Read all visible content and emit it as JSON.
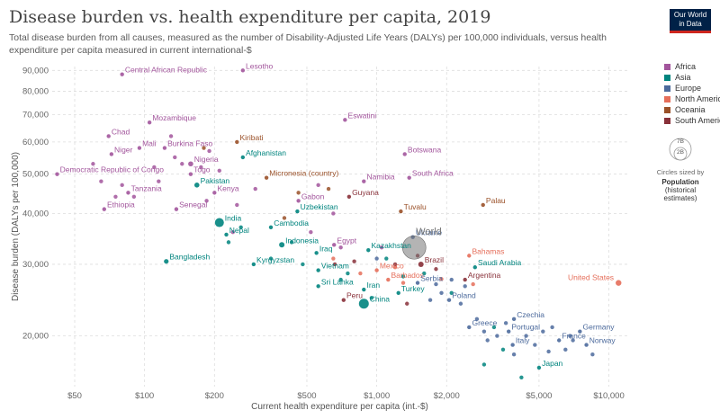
{
  "title": "Disease burden vs. health expenditure per capita, 2019",
  "subtitle": "Total disease burden from all causes, measured as the number of Disability-Adjusted Life Years (DALYs) per 100,000 individuals, versus health expenditure per capita measured in current international-$",
  "logo": {
    "line1": "Our World",
    "line2": "in Data"
  },
  "colors": {
    "Africa": "#a2559c",
    "Asia": "#00847e",
    "Europe": "#4c6a9c",
    "North America": "#e56e5a",
    "Oceania": "#9a5129",
    "South America": "#883039",
    "World": "#777777"
  },
  "legend": [
    "Africa",
    "Asia",
    "Europe",
    "North America",
    "Oceania",
    "South America"
  ],
  "size_legend": {
    "big": "7B",
    "small": "2B",
    "note": "Circles sized by",
    "title": "Population",
    "sub": "(historical estimates)"
  },
  "chart_data": {
    "type": "scatter",
    "xlabel": "Current health expenditure per capita (int.-$)",
    "ylabel": "Disease burden (DALYs per 100,000)",
    "x_scale": "log",
    "y_scale": "log",
    "xlim": [
      40,
      12000
    ],
    "ylim": [
      15000,
      92000
    ],
    "x_ticks": [
      50,
      100,
      200,
      500,
      1000,
      2000,
      5000,
      10000
    ],
    "x_tick_labels": [
      "$50",
      "$100",
      "$200",
      "$500",
      "$1,000",
      "$2,000",
      "$5,000",
      "$10,000"
    ],
    "y_ticks": [
      20000,
      30000,
      40000,
      50000,
      60000,
      70000,
      80000,
      90000
    ],
    "y_tick_labels": [
      "20,000",
      "30,000",
      "40,000",
      "50,000",
      "60,000",
      "70,000",
      "80,000",
      "90,000"
    ],
    "labeled_points": [
      {
        "name": "Central African Republic",
        "region": "Africa",
        "x": 80,
        "y": 88000
      },
      {
        "name": "Lesotho",
        "region": "Africa",
        "x": 265,
        "y": 90000
      },
      {
        "name": "Chad",
        "region": "Africa",
        "x": 70,
        "y": 62000
      },
      {
        "name": "Mozambique",
        "region": "Africa",
        "x": 105,
        "y": 67000
      },
      {
        "name": "Eswatini",
        "region": "Africa",
        "x": 730,
        "y": 68000
      },
      {
        "name": "Niger",
        "region": "Africa",
        "x": 72,
        "y": 56000
      },
      {
        "name": "Mali",
        "region": "Africa",
        "x": 95,
        "y": 58000
      },
      {
        "name": "Burkina Faso",
        "region": "Africa",
        "x": 122,
        "y": 58000
      },
      {
        "name": "Kiribati",
        "region": "Oceania",
        "x": 250,
        "y": 60000
      },
      {
        "name": "Afghanistan",
        "region": "Asia",
        "x": 265,
        "y": 55000
      },
      {
        "name": "Botswana",
        "region": "Africa",
        "x": 1320,
        "y": 56000
      },
      {
        "name": "Nigeria",
        "region": "Africa",
        "x": 158,
        "y": 53000
      },
      {
        "name": "Democratic Republic of Congo",
        "region": "Africa",
        "x": 42,
        "y": 50000
      },
      {
        "name": "Togo",
        "region": "Africa",
        "x": 158,
        "y": 50000
      },
      {
        "name": "Micronesia (country)",
        "region": "Oceania",
        "x": 335,
        "y": 49000
      },
      {
        "name": "South Africa",
        "region": "Africa",
        "x": 1380,
        "y": 49000
      },
      {
        "name": "Namibia",
        "region": "Africa",
        "x": 880,
        "y": 48000
      },
      {
        "name": "Pakistan",
        "region": "Asia",
        "x": 168,
        "y": 47000
      },
      {
        "name": "Tanzania",
        "region": "Africa",
        "x": 85,
        "y": 45000
      },
      {
        "name": "Kenya",
        "region": "Africa",
        "x": 200,
        "y": 45000
      },
      {
        "name": "Gabon",
        "region": "Africa",
        "x": 460,
        "y": 43000
      },
      {
        "name": "Guyana",
        "region": "South America",
        "x": 760,
        "y": 44000
      },
      {
        "name": "Ethiopia",
        "region": "Africa",
        "x": 67,
        "y": 41000
      },
      {
        "name": "Senegal",
        "region": "Africa",
        "x": 137,
        "y": 41000
      },
      {
        "name": "Uzbekistan",
        "region": "Asia",
        "x": 455,
        "y": 40500
      },
      {
        "name": "Tuvalu",
        "region": "Oceania",
        "x": 1270,
        "y": 40500
      },
      {
        "name": "Palau",
        "region": "Oceania",
        "x": 2870,
        "y": 42000
      },
      {
        "name": "India",
        "region": "Asia",
        "x": 210,
        "y": 38000
      },
      {
        "name": "Cambodia",
        "region": "Asia",
        "x": 350,
        "y": 37000
      },
      {
        "name": "Nepal",
        "region": "Asia",
        "x": 225,
        "y": 35500
      },
      {
        "name": "Ukraine",
        "region": "Europe",
        "x": 1430,
        "y": 35000
      },
      {
        "name": "World",
        "region": "World",
        "x": 1450,
        "y": 33000
      },
      {
        "name": "Indonesia",
        "region": "Asia",
        "x": 390,
        "y": 33500
      },
      {
        "name": "Egypt",
        "region": "Africa",
        "x": 655,
        "y": 33500
      },
      {
        "name": "Kazakhstan",
        "region": "Asia",
        "x": 920,
        "y": 32500
      },
      {
        "name": "Iraq",
        "region": "Asia",
        "x": 550,
        "y": 32000
      },
      {
        "name": "Bahamas",
        "region": "North America",
        "x": 2500,
        "y": 31500
      },
      {
        "name": "Bangladesh",
        "region": "Asia",
        "x": 124,
        "y": 30500
      },
      {
        "name": "Brazil",
        "region": "South America",
        "x": 1550,
        "y": 30000
      },
      {
        "name": "Kyrgyzstan",
        "region": "Asia",
        "x": 295,
        "y": 30000
      },
      {
        "name": "Saudi Arabia",
        "region": "Asia",
        "x": 2650,
        "y": 29500
      },
      {
        "name": "Vietnam",
        "region": "Asia",
        "x": 560,
        "y": 29000
      },
      {
        "name": "Mexico",
        "region": "North America",
        "x": 1000,
        "y": 29000
      },
      {
        "name": "Barbados",
        "region": "North America",
        "x": 1120,
        "y": 27500
      },
      {
        "name": "Argentina",
        "region": "South America",
        "x": 2400,
        "y": 27500
      },
      {
        "name": "United States",
        "region": "North America",
        "x": 11000,
        "y": 27000
      },
      {
        "name": "Serbia",
        "region": "Europe",
        "x": 1500,
        "y": 27000
      },
      {
        "name": "Sri Lanka",
        "region": "Asia",
        "x": 560,
        "y": 26500
      },
      {
        "name": "Iran",
        "region": "Asia",
        "x": 880,
        "y": 26000
      },
      {
        "name": "Turkey",
        "region": "Asia",
        "x": 1240,
        "y": 25500
      },
      {
        "name": "Poland",
        "region": "Europe",
        "x": 2050,
        "y": 24500
      },
      {
        "name": "Peru",
        "region": "South America",
        "x": 720,
        "y": 24500
      },
      {
        "name": "China",
        "region": "Asia",
        "x": 880,
        "y": 24000
      },
      {
        "name": "Czechia",
        "region": "Europe",
        "x": 3900,
        "y": 22000
      },
      {
        "name": "Greece",
        "region": "Europe",
        "x": 2500,
        "y": 21000
      },
      {
        "name": "Portugal",
        "region": "Europe",
        "x": 3700,
        "y": 20500
      },
      {
        "name": "Germany",
        "region": "Europe",
        "x": 7500,
        "y": 20500
      },
      {
        "name": "France",
        "region": "Europe",
        "x": 6100,
        "y": 19500
      },
      {
        "name": "Italy",
        "region": "Europe",
        "x": 3850,
        "y": 19000
      },
      {
        "name": "Norway",
        "region": "Europe",
        "x": 8000,
        "y": 19000
      },
      {
        "name": "Japan",
        "region": "Asia",
        "x": 5000,
        "y": 16700
      }
    ],
    "other_points": [
      {
        "region": "Africa",
        "x": 60,
        "y": 53000
      },
      {
        "region": "Africa",
        "x": 65,
        "y": 48000
      },
      {
        "region": "Africa",
        "x": 75,
        "y": 44000
      },
      {
        "region": "Africa",
        "x": 80,
        "y": 47000
      },
      {
        "region": "Africa",
        "x": 90,
        "y": 44000
      },
      {
        "region": "Africa",
        "x": 110,
        "y": 52000
      },
      {
        "region": "Africa",
        "x": 115,
        "y": 48000
      },
      {
        "region": "Africa",
        "x": 130,
        "y": 62000
      },
      {
        "region": "Africa",
        "x": 135,
        "y": 55000
      },
      {
        "region": "Africa",
        "x": 145,
        "y": 53000
      },
      {
        "region": "Africa",
        "x": 175,
        "y": 52000
      },
      {
        "region": "Africa",
        "x": 185,
        "y": 43000
      },
      {
        "region": "Africa",
        "x": 190,
        "y": 57000
      },
      {
        "region": "Africa",
        "x": 210,
        "y": 51000
      },
      {
        "region": "Africa",
        "x": 250,
        "y": 42000
      },
      {
        "region": "Africa",
        "x": 300,
        "y": 46000
      },
      {
        "region": "Africa",
        "x": 560,
        "y": 47000
      },
      {
        "region": "Africa",
        "x": 650,
        "y": 40000
      },
      {
        "region": "Africa",
        "x": 520,
        "y": 36000
      },
      {
        "region": "Africa",
        "x": 700,
        "y": 33000
      },
      {
        "region": "Africa",
        "x": 1050,
        "y": 33000
      },
      {
        "region": "Africa",
        "x": 240,
        "y": 36000
      },
      {
        "region": "Asia",
        "x": 230,
        "y": 34000
      },
      {
        "region": "Asia",
        "x": 260,
        "y": 37000
      },
      {
        "region": "Asia",
        "x": 350,
        "y": 31000
      },
      {
        "region": "Asia",
        "x": 430,
        "y": 34000
      },
      {
        "region": "Asia",
        "x": 480,
        "y": 30000
      },
      {
        "region": "Asia",
        "x": 700,
        "y": 27500
      },
      {
        "region": "Asia",
        "x": 750,
        "y": 28500
      },
      {
        "region": "Asia",
        "x": 950,
        "y": 24800
      },
      {
        "region": "Asia",
        "x": 1100,
        "y": 31000
      },
      {
        "region": "Asia",
        "x": 1300,
        "y": 28000
      },
      {
        "region": "Asia",
        "x": 1600,
        "y": 28500
      },
      {
        "region": "Asia",
        "x": 2100,
        "y": 25500
      },
      {
        "region": "Asia",
        "x": 2900,
        "y": 17000
      },
      {
        "region": "Asia",
        "x": 3200,
        "y": 21000
      },
      {
        "region": "Asia",
        "x": 4200,
        "y": 15800
      },
      {
        "region": "Asia",
        "x": 3500,
        "y": 18500
      },
      {
        "region": "Europe",
        "x": 1000,
        "y": 31000
      },
      {
        "region": "Europe",
        "x": 1700,
        "y": 24500
      },
      {
        "region": "Europe",
        "x": 1800,
        "y": 26800
      },
      {
        "region": "Europe",
        "x": 1900,
        "y": 25500
      },
      {
        "region": "Europe",
        "x": 2100,
        "y": 27500
      },
      {
        "region": "Europe",
        "x": 2300,
        "y": 24000
      },
      {
        "region": "Europe",
        "x": 2400,
        "y": 26500
      },
      {
        "region": "Europe",
        "x": 2700,
        "y": 22000
      },
      {
        "region": "Europe",
        "x": 2900,
        "y": 20500
      },
      {
        "region": "Europe",
        "x": 3000,
        "y": 19500
      },
      {
        "region": "Europe",
        "x": 3300,
        "y": 20000
      },
      {
        "region": "Europe",
        "x": 3600,
        "y": 21500
      },
      {
        "region": "Europe",
        "x": 3900,
        "y": 18000
      },
      {
        "region": "Europe",
        "x": 4400,
        "y": 20000
      },
      {
        "region": "Europe",
        "x": 4800,
        "y": 19000
      },
      {
        "region": "Europe",
        "x": 5200,
        "y": 20500
      },
      {
        "region": "Europe",
        "x": 5500,
        "y": 18300
      },
      {
        "region": "Europe",
        "x": 5700,
        "y": 21000
      },
      {
        "region": "Europe",
        "x": 6500,
        "y": 18500
      },
      {
        "region": "Europe",
        "x": 7000,
        "y": 19500
      },
      {
        "region": "Europe",
        "x": 8500,
        "y": 18000
      },
      {
        "region": "Europe",
        "x": 6800,
        "y": 20000
      },
      {
        "region": "North America",
        "x": 850,
        "y": 28500
      },
      {
        "region": "North America",
        "x": 1200,
        "y": 29500
      },
      {
        "region": "North America",
        "x": 1300,
        "y": 27000
      },
      {
        "region": "North America",
        "x": 650,
        "y": 31000
      },
      {
        "region": "North America",
        "x": 2600,
        "y": 26800
      },
      {
        "region": "North America",
        "x": 1900,
        "y": 27600
      },
      {
        "region": "Oceania",
        "x": 180,
        "y": 58000
      },
      {
        "region": "Oceania",
        "x": 460,
        "y": 45000
      },
      {
        "region": "Oceania",
        "x": 620,
        "y": 46000
      },
      {
        "region": "Oceania",
        "x": 400,
        "y": 39000
      },
      {
        "region": "South America",
        "x": 1200,
        "y": 30000
      },
      {
        "region": "South America",
        "x": 1350,
        "y": 24000
      },
      {
        "region": "South America",
        "x": 800,
        "y": 30500
      },
      {
        "region": "South America",
        "x": 1800,
        "y": 29200
      },
      {
        "region": "South America",
        "x": 660,
        "y": 30000
      },
      {
        "region": "South America",
        "x": 1500,
        "y": 31500
      }
    ]
  }
}
